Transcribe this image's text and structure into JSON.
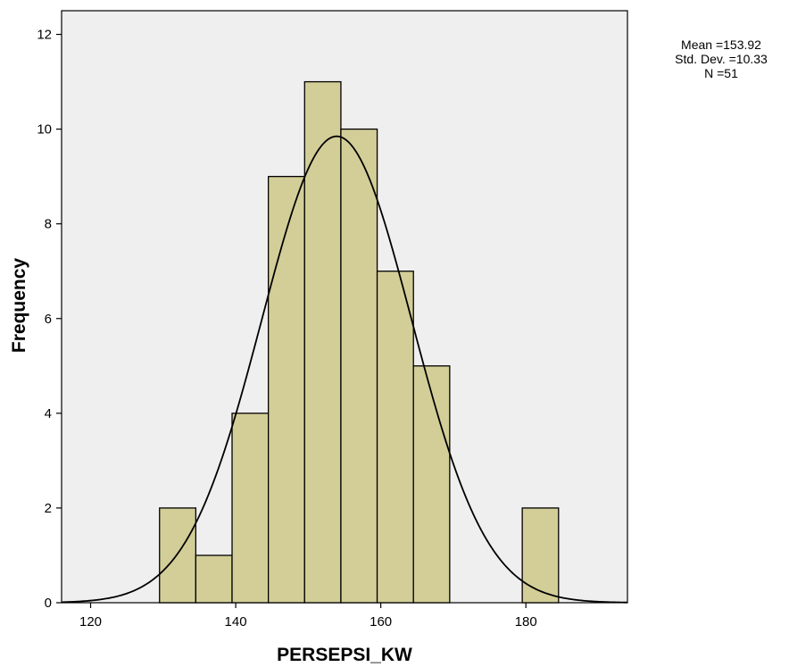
{
  "chart_data": {
    "type": "bar",
    "subtype": "histogram",
    "xlabel": "PERSEPSI_KW",
    "ylabel": "Frequency",
    "xlim": [
      116,
      194
    ],
    "ylim": [
      0,
      12.5
    ],
    "x_ticks": [
      120,
      140,
      160,
      180
    ],
    "y_ticks": [
      0,
      2,
      4,
      6,
      8,
      10,
      12
    ],
    "bin_width": 5,
    "bins": [
      {
        "start": 129.5,
        "end": 134.5,
        "count": 2
      },
      {
        "start": 134.5,
        "end": 139.5,
        "count": 1
      },
      {
        "start": 139.5,
        "end": 144.5,
        "count": 4
      },
      {
        "start": 144.5,
        "end": 149.5,
        "count": 9
      },
      {
        "start": 149.5,
        "end": 154.5,
        "count": 11
      },
      {
        "start": 154.5,
        "end": 159.5,
        "count": 10
      },
      {
        "start": 159.5,
        "end": 164.5,
        "count": 7
      },
      {
        "start": 164.5,
        "end": 169.5,
        "count": 5
      },
      {
        "start": 169.5,
        "end": 174.5,
        "count": 0
      },
      {
        "start": 174.5,
        "end": 179.5,
        "count": 0
      },
      {
        "start": 179.5,
        "end": 184.5,
        "count": 2
      }
    ],
    "normal_curve": {
      "mean": 153.92,
      "std_dev": 10.33,
      "n": 51
    },
    "stats": {
      "mean_label": "Mean =153.92",
      "std_label": "Std. Dev. =10.33",
      "n_label": "N =51"
    },
    "grid": false
  },
  "colors": {
    "bar_fill": "#d3ce98",
    "bar_stroke": "#000000",
    "plot_background": "#efefef",
    "curve": "#000000"
  }
}
